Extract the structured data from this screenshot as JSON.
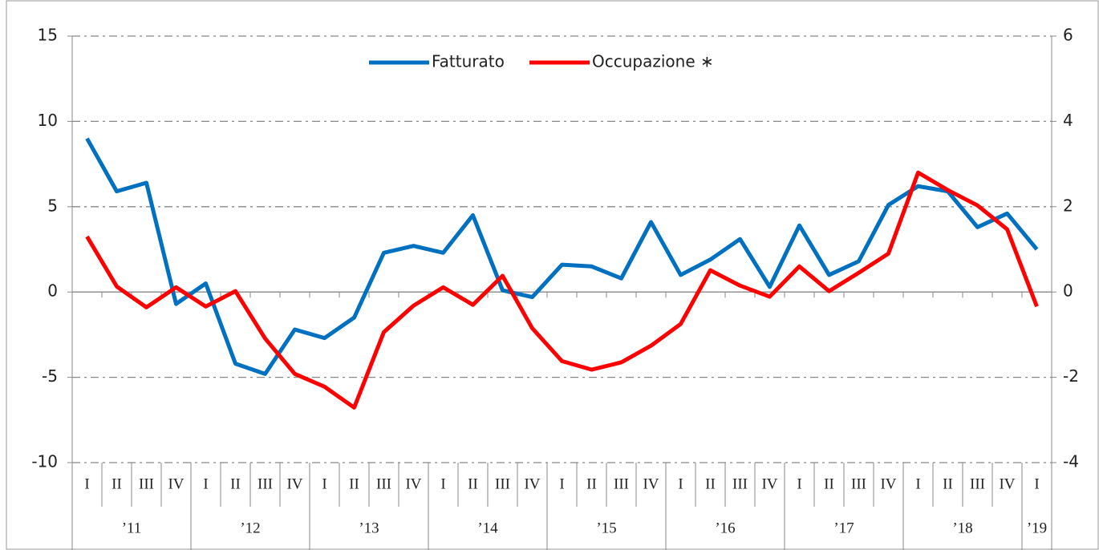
{
  "chart_data": {
    "type": "line",
    "categories": [
      "I",
      "II",
      "III",
      "IV",
      "I",
      "II",
      "III",
      "IV",
      "I",
      "II",
      "III",
      "IV",
      "I",
      "II",
      "III",
      "IV",
      "I",
      "II",
      "III",
      "IV",
      "I",
      "II",
      "III",
      "IV",
      "I",
      "II",
      "III",
      "IV",
      "I",
      "II",
      "III",
      "IV",
      "I"
    ],
    "category_groups": [
      "’11",
      "’12",
      "’13",
      "’14",
      "’15",
      "’16",
      "’17",
      "’18",
      "’19"
    ],
    "series": [
      {
        "name": "Fatturato",
        "color": "#0070c0",
        "values": [
          9.0,
          5.9,
          6.4,
          -0.7,
          0.5,
          -4.2,
          -4.8,
          -2.2,
          -2.7,
          -1.5,
          2.3,
          2.7,
          2.3,
          4.5,
          0.1,
          -0.3,
          1.6,
          1.5,
          0.8,
          4.1,
          1.0,
          1.9,
          3.1,
          0.3,
          3.9,
          1.0,
          1.8,
          5.1,
          6.2,
          5.9,
          3.8,
          4.6,
          2.5
        ]
      },
      {
        "name": "Occupazione ∗",
        "color": "#ff0000",
        "axis": "y2",
        "values": [
          1.3,
          0.13,
          -0.36,
          0.11,
          -0.34,
          0.02,
          -1.09,
          -1.92,
          -2.22,
          -2.71,
          -0.94,
          -0.32,
          0.11,
          -0.3,
          0.38,
          -0.85,
          -1.62,
          -1.82,
          -1.65,
          -1.26,
          -0.75,
          0.51,
          0.15,
          -0.11,
          0.6,
          0.02,
          0.45,
          0.9,
          2.8,
          2.39,
          2.03,
          1.47,
          -0.34
        ]
      }
    ],
    "ylim": [
      -10,
      15
    ],
    "yticks": [
      -10,
      -5,
      0,
      5,
      10,
      15
    ],
    "y2lim": [
      -4,
      6
    ],
    "y2ticks": [
      -4,
      -2,
      0,
      2,
      4,
      6
    ],
    "grid": true,
    "legend": "top"
  }
}
